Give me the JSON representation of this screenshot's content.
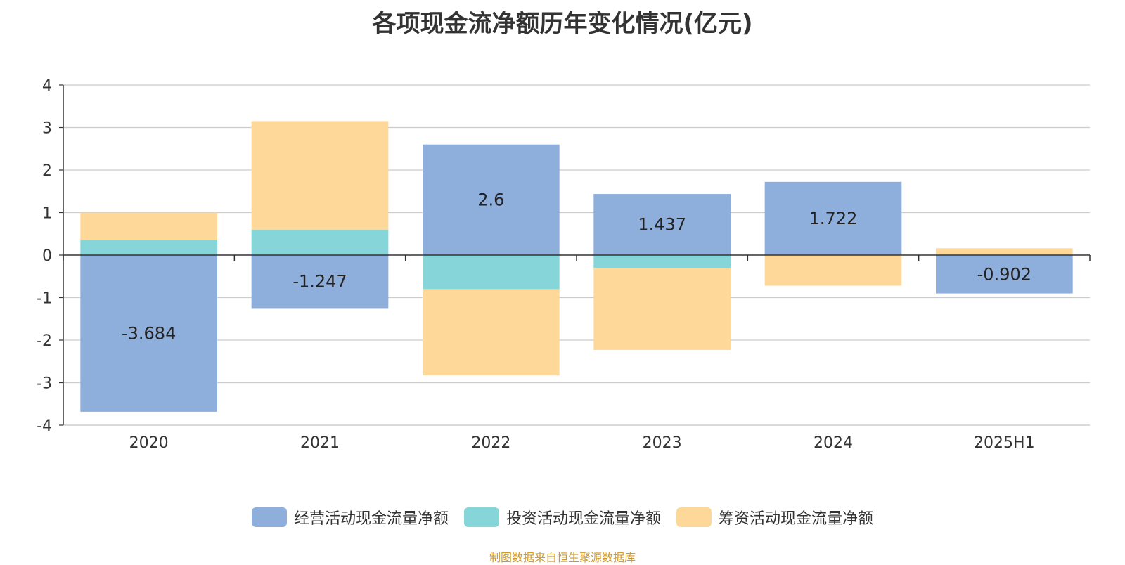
{
  "chart_data": {
    "type": "bar",
    "stacked": true,
    "title": "各项现金流净额历年变化情况(亿元)",
    "categories": [
      "2020",
      "2021",
      "2022",
      "2023",
      "2024",
      "2025H1"
    ],
    "ylim": [
      -4,
      4
    ],
    "yticks": [
      4,
      3,
      2,
      1,
      0,
      -1,
      -2,
      -3,
      -4
    ],
    "grid": true,
    "legend_position": "bottom",
    "series": [
      {
        "name": "经营活动现金流量净额",
        "color": "#8eaedb",
        "values": [
          -3.684,
          -1.247,
          2.6,
          1.437,
          1.722,
          -0.902
        ]
      },
      {
        "name": "投资活动现金流量净额",
        "color": "#86d5d8",
        "values": [
          0.36,
          0.6,
          -0.8,
          -0.3,
          0.0,
          0.0
        ]
      },
      {
        "name": "筹资活动现金流量净额",
        "color": "#fed898",
        "values": [
          0.64,
          2.55,
          -2.03,
          -1.93,
          -0.72,
          0.16
        ]
      }
    ],
    "data_labels": [
      "-3.684",
      "-1.247",
      "2.6",
      "1.437",
      "1.722",
      "-0.902"
    ],
    "source": "制图数据来自恒生聚源数据库"
  }
}
